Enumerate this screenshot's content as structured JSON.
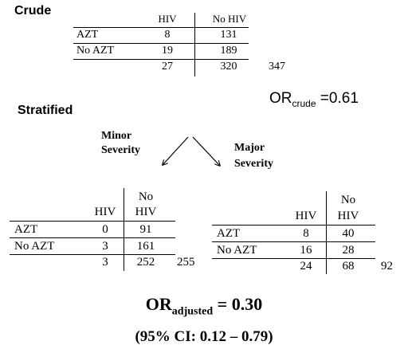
{
  "crude": {
    "heading": "Crude",
    "col_hiv": "HIV",
    "col_nohiv": "No HIV",
    "rows": [
      {
        "label": "AZT",
        "hiv": "8",
        "nohiv": "131"
      },
      {
        "label": "No AZT",
        "hiv": "19",
        "nohiv": "189"
      }
    ],
    "total_hiv": "27",
    "total_nohiv": "320",
    "grand_total": "347"
  },
  "or_crude": {
    "prefix": "OR",
    "subscript": "crude",
    "value": " =0.61"
  },
  "stratified": {
    "heading": "Stratified",
    "minor_label_1": "Minor",
    "minor_label_2": "Severity",
    "major_label_1": "Major",
    "major_label_2": "Severity"
  },
  "minor": {
    "col_hiv": "HIV",
    "col_nohiv_1": "No",
    "col_nohiv_2": "HIV",
    "rows": [
      {
        "label": "AZT",
        "hiv": "0",
        "nohiv": "91"
      },
      {
        "label": "No AZT",
        "hiv": "3",
        "nohiv": "161"
      }
    ],
    "total_hiv": "3",
    "total_nohiv": "252",
    "grand_total": "255"
  },
  "major": {
    "col_hiv": "HIV",
    "col_nohiv_1": "No",
    "col_nohiv_2": "HIV",
    "rows": [
      {
        "label": "AZT",
        "hiv": "8",
        "nohiv": "40"
      },
      {
        "label": "No AZT",
        "hiv": "16",
        "nohiv": "28"
      }
    ],
    "total_hiv": "24",
    "total_nohiv": "68",
    "grand_total": "92"
  },
  "or_adjusted": {
    "prefix": "OR",
    "subscript": "adjusted",
    "value": " = 0.30"
  },
  "ci": "(95% CI:  0.12 – 0.79)"
}
